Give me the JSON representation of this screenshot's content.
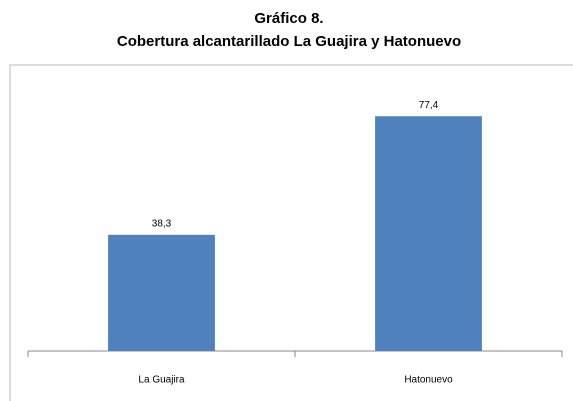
{
  "chart_data": {
    "type": "bar",
    "title": "Gráfico 8.",
    "subtitle": "Cobertura alcantarillado La Guajira y Hatonuevo",
    "categories": [
      "La Guajira",
      "Hatonuevo"
    ],
    "values": [
      38.3,
      77.4
    ],
    "value_labels": [
      "38,3",
      "77,4"
    ],
    "color": "#4f81bd",
    "ylim": [
      0,
      90
    ]
  }
}
